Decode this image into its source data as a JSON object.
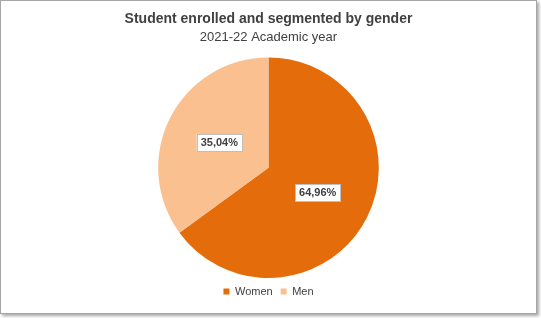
{
  "chart_data": {
    "type": "pie",
    "title": "Student enrolled and segmented by gender",
    "subtitle": "2021-22 Academic year",
    "categories": [
      "Women",
      "Men"
    ],
    "values": [
      64.96,
      35.04
    ],
    "value_labels": [
      "64,96%",
      "35,04%"
    ],
    "colors": [
      "#e46c0a",
      "#fac08f"
    ],
    "data_labels": true,
    "legend": "bottom"
  }
}
